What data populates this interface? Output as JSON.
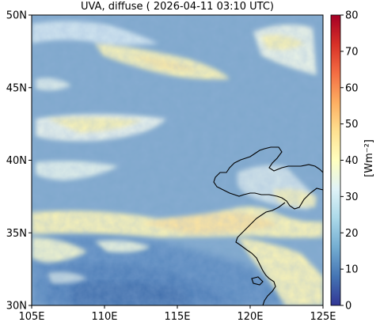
{
  "title": "UVA, diffuse ( 2026-04-11 03:10 UTC)",
  "map": {
    "lon_range": [
      105,
      125
    ],
    "lat_range": [
      30,
      50
    ],
    "x_ticks": [
      {
        "value": 105,
        "label": "105E"
      },
      {
        "value": 110,
        "label": "110E"
      },
      {
        "value": 115,
        "label": "115E"
      },
      {
        "value": 120,
        "label": "120E"
      },
      {
        "value": 125,
        "label": "125E"
      }
    ],
    "y_ticks": [
      {
        "value": 30,
        "label": "30N"
      },
      {
        "value": 35,
        "label": "35N"
      },
      {
        "value": 40,
        "label": "40N"
      },
      {
        "value": 45,
        "label": "45N"
      },
      {
        "value": 50,
        "label": "50N"
      }
    ],
    "base_color": "#7fa8cc",
    "cloud_color": "#f7f1b6",
    "coastline_color": "#000000"
  },
  "colorbar": {
    "label": "[Wm⁻²]",
    "range": [
      0,
      80
    ],
    "ticks": [
      "0",
      "10",
      "20",
      "30",
      "40",
      "50",
      "60",
      "70",
      "80"
    ],
    "colors": [
      "#313695",
      "#4575b4",
      "#74add1",
      "#abd9e9",
      "#e0f3f8",
      "#ffffbf",
      "#fee090",
      "#fdae61",
      "#f46d43",
      "#d73027",
      "#a50026"
    ]
  }
}
